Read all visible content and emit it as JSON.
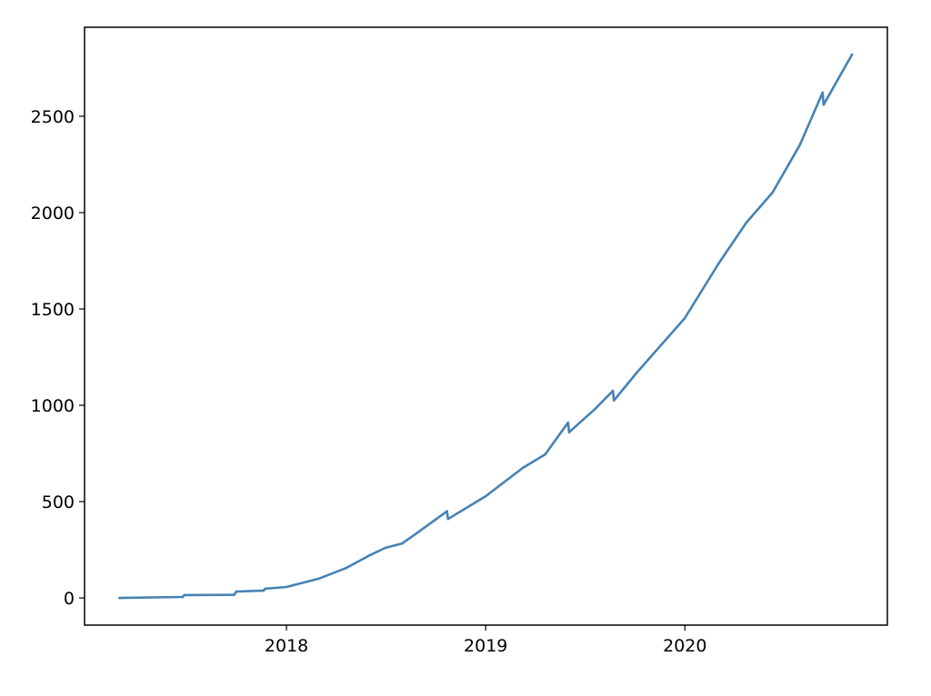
{
  "chart_data": {
    "type": "line",
    "title": "",
    "xlabel": "",
    "ylabel": "",
    "xlim": [
      "2016-12-27",
      "2021-01-07"
    ],
    "ylim": [
      -141,
      2962
    ],
    "grid": false,
    "x_ticks": [
      "2018",
      "2019",
      "2020"
    ],
    "y_ticks": [
      0,
      500,
      1000,
      1500,
      2000,
      2500
    ],
    "line_color": "#4682b4",
    "series": [
      {
        "x": [
          "2017-03-01",
          "2017-06-25",
          "2017-06-28",
          "2017-09-27",
          "2017-10-01",
          "2017-11-20",
          "2017-11-23",
          "2018-01-01",
          "2018-03-01",
          "2018-04-20",
          "2018-06-05",
          "2018-07-01",
          "2018-08-01",
          "2018-09-01",
          "2018-10-22",
          "2018-10-24",
          "2019-01-01",
          "2019-03-10",
          "2019-04-20",
          "2019-06-01",
          "2019-06-03",
          "2019-07-20",
          "2019-08-22",
          "2019-08-24",
          "2019-10-05",
          "2020-01-01",
          "2020-03-03",
          "2020-04-23",
          "2020-06-10",
          "2020-07-30",
          "2020-09-10",
          "2020-09-12",
          "2020-11-03"
        ],
        "y": [
          0,
          5,
          15,
          16,
          33,
          38,
          48,
          57,
          100,
          155,
          225,
          260,
          283,
          345,
          450,
          410,
          528,
          675,
          745,
          910,
          860,
          980,
          1075,
          1025,
          1170,
          1453,
          1736,
          1948,
          2104,
          2350,
          2623,
          2560,
          2820
        ]
      }
    ]
  }
}
